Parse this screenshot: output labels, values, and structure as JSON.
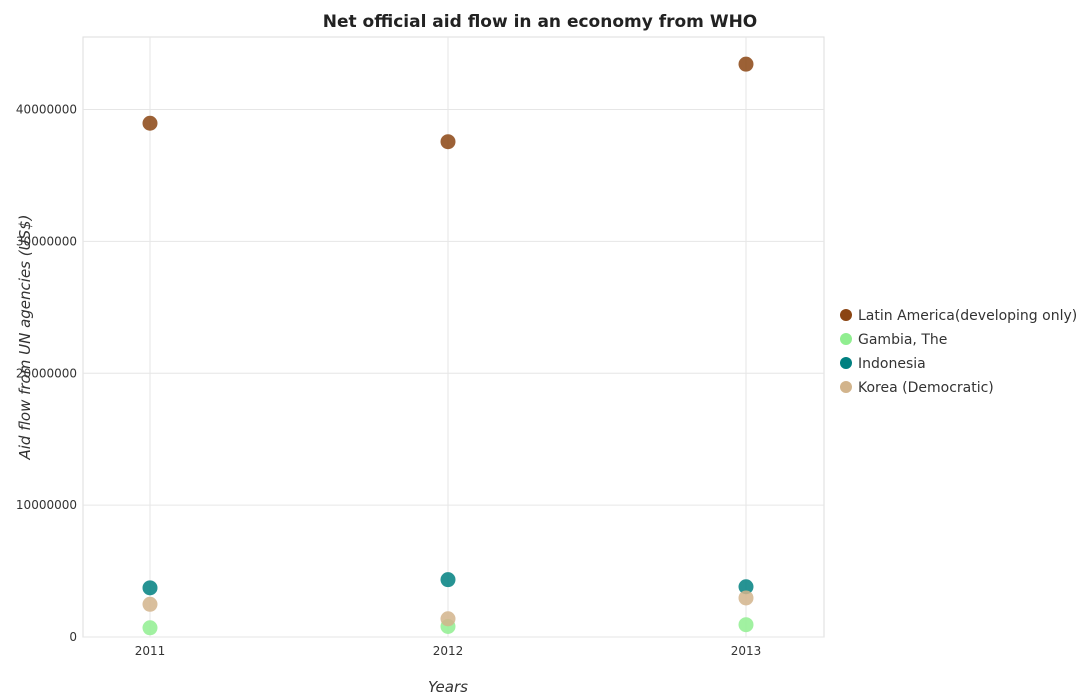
{
  "chart_data": {
    "type": "scatter",
    "title": "Net official aid flow in an economy from WHO",
    "xlabel": "Years",
    "ylabel": "Aid flow from UN agencies (US$)",
    "categories": [
      "2011",
      "2012",
      "2013"
    ],
    "ylim": [
      0,
      45500000
    ],
    "yticks": [
      0,
      10000000,
      20000000,
      30000000,
      40000000
    ],
    "ytick_labels": [
      "0",
      "10000000",
      "20000000",
      "30000000",
      "40000000"
    ],
    "grid": true,
    "legend_position": "right",
    "series": [
      {
        "name": "Latin America(developing only)",
        "color": "#8b4513",
        "values": [
          38960000,
          37560000,
          43440000
        ]
      },
      {
        "name": "Gambia, The",
        "color": "#90ee90",
        "values": [
          700000,
          800000,
          930000
        ]
      },
      {
        "name": "Indonesia",
        "color": "#008080",
        "values": [
          3730000,
          4350000,
          3810000
        ]
      },
      {
        "name": "Korea (Democratic)",
        "color": "#d2b48c",
        "values": [
          2480000,
          1380000,
          2960000
        ]
      }
    ]
  }
}
